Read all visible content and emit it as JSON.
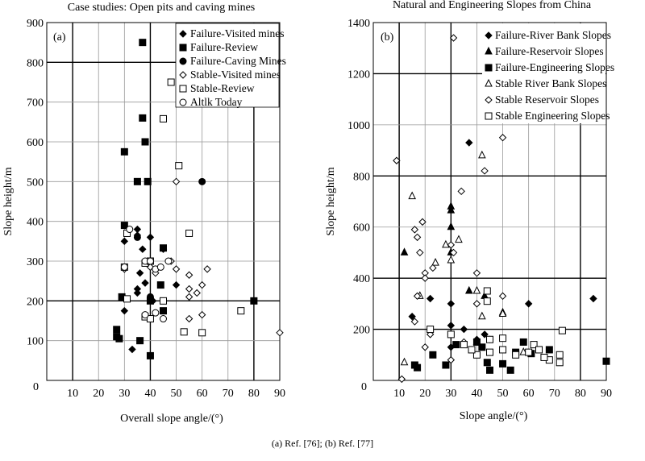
{
  "caption": "(a) Ref. [76]; (b) Ref. [77]",
  "chart_data": [
    {
      "type": "scatter",
      "title": "Case studies: Open pits and caving mines",
      "panel_label": "(a)",
      "xlabel": "Overall slope angle/(°)",
      "ylabel": "Slope height/m",
      "xlim": [
        0,
        90
      ],
      "ylim": [
        0,
        900
      ],
      "x_ticks": [
        0,
        10,
        20,
        30,
        40,
        50,
        60,
        70,
        80,
        90
      ],
      "y_ticks": [
        100,
        200,
        300,
        400,
        500,
        600,
        700,
        800,
        900
      ],
      "y_tick_labels": [
        "100",
        "200",
        "300",
        "400",
        "500",
        "600",
        "700",
        "800",
        "900"
      ],
      "x_tick_labels": [
        "0",
        "10",
        "20",
        "30",
        "40",
        "50",
        "60",
        "70",
        "80",
        "90"
      ],
      "origin_label": "0",
      "major_x_lines": [
        10,
        40,
        80
      ],
      "major_y_lines": [
        200,
        800
      ],
      "grid": true,
      "legend_position": "top-right",
      "series": [
        {
          "name": "Failure-Visited mines",
          "marker": "diamond-filled",
          "points": [
            [
              30,
              350
            ],
            [
              33,
              78
            ],
            [
              35,
              380
            ],
            [
              35,
              365
            ],
            [
              35,
              230
            ],
            [
              35,
              220
            ],
            [
              36,
              270
            ],
            [
              37,
              330
            ],
            [
              38,
              245
            ],
            [
              40,
              360
            ],
            [
              41,
              200
            ],
            [
              45,
              330
            ],
            [
              50,
              240
            ],
            [
              30,
              175
            ]
          ]
        },
        {
          "name": "Failure-Review",
          "marker": "square-filled",
          "points": [
            [
              37,
              850
            ],
            [
              37,
              660
            ],
            [
              38,
              600
            ],
            [
              35,
              500
            ],
            [
              39,
              500
            ],
            [
              30,
              575
            ],
            [
              30,
              390
            ],
            [
              29,
              210
            ],
            [
              27,
              128
            ],
            [
              28,
              105
            ],
            [
              27,
              110
            ],
            [
              36,
              100
            ],
            [
              40,
              62
            ],
            [
              40,
              200
            ],
            [
              45,
              175
            ],
            [
              45,
              333
            ],
            [
              44,
              240
            ],
            [
              80,
              200
            ]
          ]
        },
        {
          "name": "Failure-Caving Mines",
          "marker": "circle-filled",
          "points": [
            [
              60,
              500
            ],
            [
              35,
              360
            ],
            [
              40,
              210
            ]
          ]
        },
        {
          "name": "Stable-Visited mines",
          "marker": "diamond-open",
          "points": [
            [
              50,
              500
            ],
            [
              48,
              300
            ],
            [
              50,
              280
            ],
            [
              55,
              265
            ],
            [
              55,
              230
            ],
            [
              58,
              220
            ],
            [
              60,
              240
            ],
            [
              62,
              280
            ],
            [
              55,
              210
            ],
            [
              60,
              165
            ],
            [
              55,
              155
            ],
            [
              40,
              285
            ],
            [
              42,
              270
            ],
            [
              90,
              120
            ],
            [
              30,
              280
            ]
          ]
        },
        {
          "name": "Stable-Review",
          "marker": "square-open",
          "points": [
            [
              48,
              750
            ],
            [
              45,
              658
            ],
            [
              51,
              540
            ],
            [
              55,
              370
            ],
            [
              31,
              370
            ],
            [
              30,
              285
            ],
            [
              38,
              295
            ],
            [
              40,
              300
            ],
            [
              38,
              160
            ],
            [
              40,
              155
            ],
            [
              45,
              200
            ],
            [
              53,
              122
            ],
            [
              60,
              120
            ],
            [
              75,
              175
            ],
            [
              31,
              205
            ]
          ]
        },
        {
          "name": "Altlk Today",
          "marker": "circle-open",
          "points": [
            [
              30,
              285
            ],
            [
              32,
              380
            ],
            [
              38,
              300
            ],
            [
              40,
              300
            ],
            [
              42,
              280
            ],
            [
              44,
              285
            ],
            [
              47,
              300
            ],
            [
              45,
              155
            ],
            [
              38,
              165
            ],
            [
              42,
              170
            ]
          ]
        }
      ]
    },
    {
      "type": "scatter",
      "title": "Natural and Engineering Slopes from China",
      "panel_label": "(b)",
      "xlabel": "Slope angle/(°)",
      "ylabel": "Slope height/m",
      "xlim": [
        0,
        90
      ],
      "ylim": [
        0,
        1400
      ],
      "x_ticks": [
        0,
        10,
        20,
        30,
        40,
        50,
        60,
        70,
        80,
        90
      ],
      "x_tick_labels": [
        "",
        "10",
        "20",
        "30",
        "40",
        "50",
        "60",
        "70",
        "80",
        "90"
      ],
      "y_ticks": [
        200,
        400,
        600,
        800,
        1000,
        1200,
        1400
      ],
      "y_tick_labels": [
        "200",
        "400",
        "600",
        "800",
        "1000",
        "1200",
        "1400"
      ],
      "origin_label": "0",
      "major_x_lines": [
        10,
        30,
        80
      ],
      "major_y_lines": [
        200,
        400,
        800,
        1200
      ],
      "grid": true,
      "legend_position": "top-right",
      "series": [
        {
          "name": "Failure-River Bank Slopes",
          "marker": "diamond-filled",
          "points": [
            [
              37,
              930
            ],
            [
              15,
              250
            ],
            [
              22,
              320
            ],
            [
              30,
              300
            ],
            [
              30,
              215
            ],
            [
              35,
              200
            ],
            [
              43,
              180
            ],
            [
              60,
              300
            ],
            [
              85,
              320
            ],
            [
              30,
              130
            ],
            [
              40,
              160
            ]
          ]
        },
        {
          "name": "Failure-Reservoir Slopes",
          "marker": "triangle-filled",
          "points": [
            [
              12,
              500
            ],
            [
              30,
              680
            ],
            [
              30,
              665
            ],
            [
              30,
              600
            ],
            [
              37,
              350
            ],
            [
              43,
              330
            ],
            [
              30,
              500
            ],
            [
              50,
              265
            ],
            [
              40,
              150
            ]
          ]
        },
        {
          "name": "Failure-Engineering Slopes",
          "marker": "square-filled",
          "points": [
            [
              16,
              60
            ],
            [
              17,
              50
            ],
            [
              23,
              100
            ],
            [
              28,
              60
            ],
            [
              32,
              140
            ],
            [
              40,
              150
            ],
            [
              42,
              130
            ],
            [
              45,
              40
            ],
            [
              50,
              65
            ],
            [
              53,
              40
            ],
            [
              55,
              110
            ],
            [
              58,
              150
            ],
            [
              61,
              105
            ],
            [
              68,
              120
            ],
            [
              90,
              75
            ],
            [
              44,
              70
            ]
          ]
        },
        {
          "name": "Stable River Bank Slopes",
          "marker": "triangle-open",
          "points": [
            [
              15,
              720
            ],
            [
              12,
              70
            ],
            [
              28,
              530
            ],
            [
              30,
              470
            ],
            [
              33,
              550
            ],
            [
              42,
              880
            ],
            [
              40,
              350
            ],
            [
              42,
              250
            ],
            [
              50,
              260
            ],
            [
              58,
              110
            ],
            [
              18,
              330
            ],
            [
              24,
              460
            ]
          ]
        },
        {
          "name": "Stable Reservoir Slopes",
          "marker": "diamond-open",
          "points": [
            [
              9,
              860
            ],
            [
              16,
              590
            ],
            [
              17,
              560
            ],
            [
              18,
              500
            ],
            [
              19,
              620
            ],
            [
              20,
              420
            ],
            [
              20,
              400
            ],
            [
              23,
              440
            ],
            [
              30,
              530
            ],
            [
              31,
              500
            ],
            [
              34,
              740
            ],
            [
              43,
              820
            ],
            [
              50,
              950
            ],
            [
              40,
              420
            ],
            [
              40,
              300
            ],
            [
              50,
              330
            ],
            [
              17,
              330
            ],
            [
              16,
              230
            ],
            [
              20,
              130
            ],
            [
              22,
              180
            ],
            [
              31,
              1340
            ],
            [
              11,
              5
            ],
            [
              30,
              80
            ],
            [
              35,
              150
            ],
            [
              45,
              160
            ]
          ]
        },
        {
          "name": "Stable Engineering Slopes",
          "marker": "square-open",
          "points": [
            [
              22,
              200
            ],
            [
              30,
              180
            ],
            [
              35,
              140
            ],
            [
              40,
              100
            ],
            [
              44,
              350
            ],
            [
              44,
              310
            ],
            [
              45,
              160
            ],
            [
              45,
              110
            ],
            [
              50,
              165
            ],
            [
              50,
              120
            ],
            [
              55,
              100
            ],
            [
              60,
              110
            ],
            [
              62,
              140
            ],
            [
              64,
              120
            ],
            [
              68,
              80
            ],
            [
              72,
              70
            ],
            [
              73,
              195
            ],
            [
              66,
              90
            ],
            [
              72,
              100
            ],
            [
              38,
              120
            ]
          ]
        }
      ]
    }
  ]
}
